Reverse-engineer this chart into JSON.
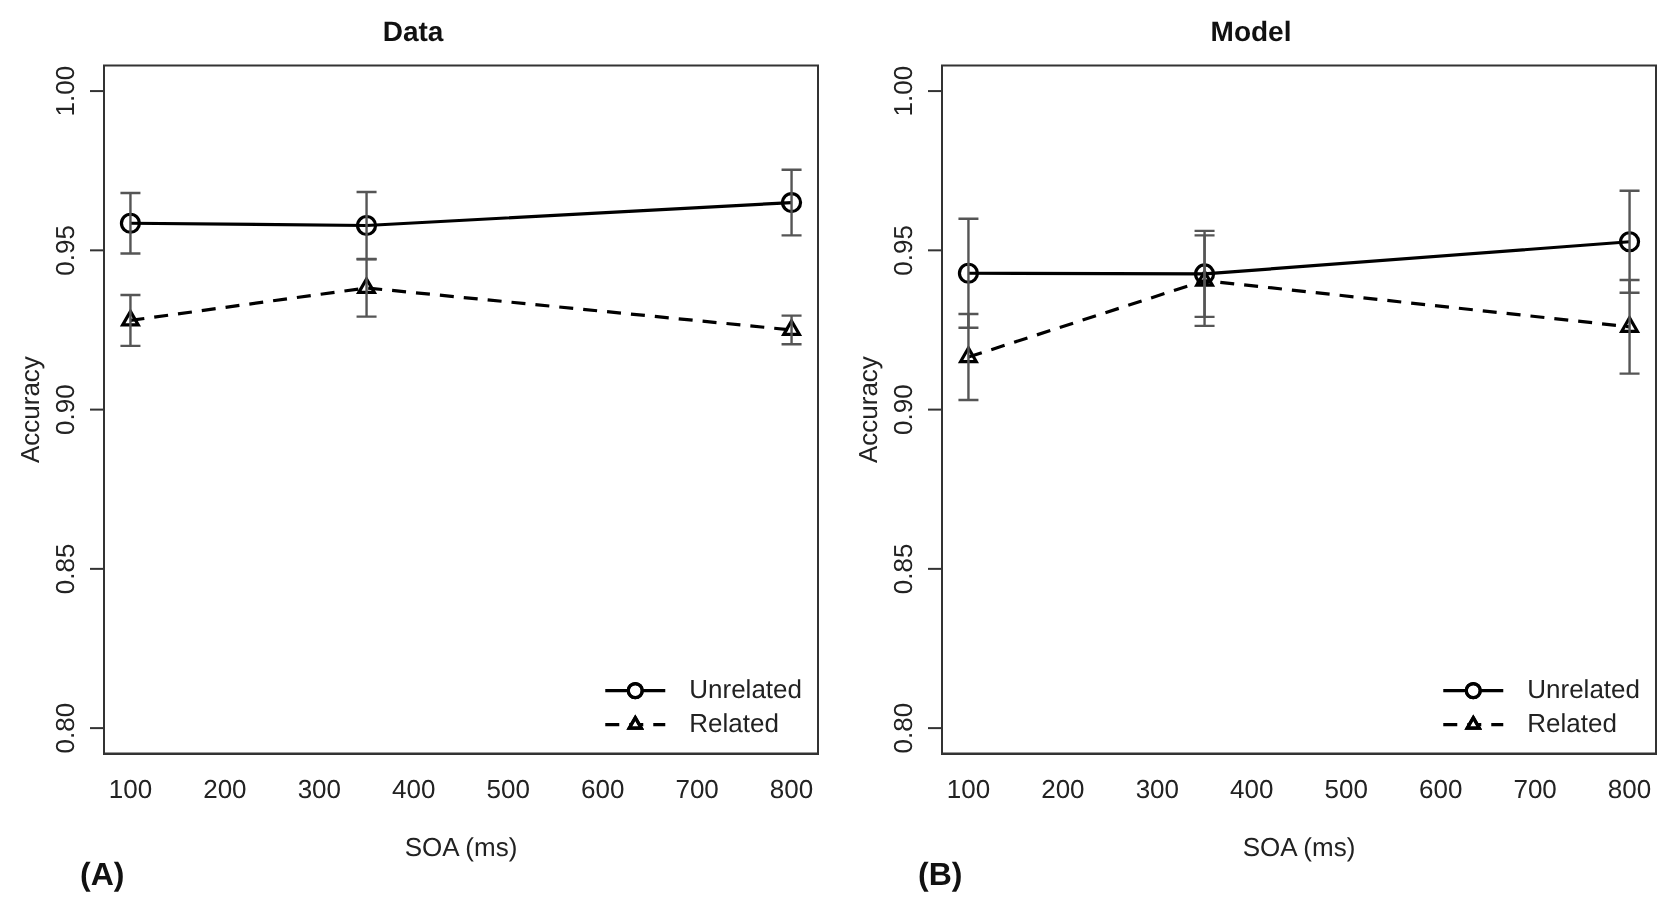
{
  "chart_data": [
    {
      "type": "line",
      "title": "Data",
      "xlabel": "SOA (ms)",
      "ylabel": "Accuracy",
      "annotations": [
        "(A)"
      ],
      "x": [
        100,
        350,
        800
      ],
      "xlim": [
        72,
        828
      ],
      "xticks": [
        100,
        200,
        300,
        400,
        500,
        600,
        700,
        800
      ],
      "ylim": [
        0.792,
        1.008
      ],
      "yticks": [
        {
          "value": 0.8,
          "label": "0.80"
        },
        {
          "value": 0.85,
          "label": "0.85"
        },
        {
          "value": 0.9,
          "label": "0.90"
        },
        {
          "value": 0.95,
          "label": "0.95"
        },
        {
          "value": 1.0,
          "label": "1.00"
        }
      ],
      "grid": false,
      "legend": "bottom right",
      "series": [
        {
          "name": "Unrelated",
          "color": "#000000",
          "values": [
            0.9585,
            0.9578,
            0.965
          ],
          "errors": [
            0.0095,
            0.0105,
            0.0103
          ],
          "marker": "circle",
          "line_style": "solid"
        },
        {
          "name": "Related",
          "color": "#000000",
          "values": [
            0.928,
            0.9382,
            0.925
          ],
          "errors": [
            0.008,
            0.009,
            0.0045
          ],
          "marker": "triangle",
          "line_style": "dashed"
        }
      ]
    },
    {
      "type": "line",
      "title": "Model",
      "xlabel": "SOA (ms)",
      "ylabel": "Accuracy",
      "annotations": [
        "(B)"
      ],
      "x": [
        100,
        350,
        800
      ],
      "xlim": [
        72,
        828
      ],
      "xticks": [
        100,
        200,
        300,
        400,
        500,
        600,
        700,
        800
      ],
      "ylim": [
        0.792,
        1.008
      ],
      "yticks": [
        {
          "value": 0.8,
          "label": "0.80"
        },
        {
          "value": 0.85,
          "label": "0.85"
        },
        {
          "value": 0.9,
          "label": "0.90"
        },
        {
          "value": 0.95,
          "label": "0.95"
        },
        {
          "value": 1.0,
          "label": "1.00"
        }
      ],
      "grid": false,
      "legend": "bottom right",
      "series": [
        {
          "name": "Unrelated",
          "color": "#000000",
          "values": [
            0.9428,
            0.9426,
            0.9527
          ],
          "errors": [
            0.0171,
            0.0135,
            0.016
          ],
          "marker": "circle",
          "line_style": "solid"
        },
        {
          "name": "Related",
          "color": "#000000",
          "values": [
            0.9165,
            0.9405,
            0.926
          ],
          "errors": [
            0.0135,
            0.0142,
            0.0147
          ],
          "marker": "triangle",
          "line_style": "dashed"
        }
      ]
    }
  ]
}
